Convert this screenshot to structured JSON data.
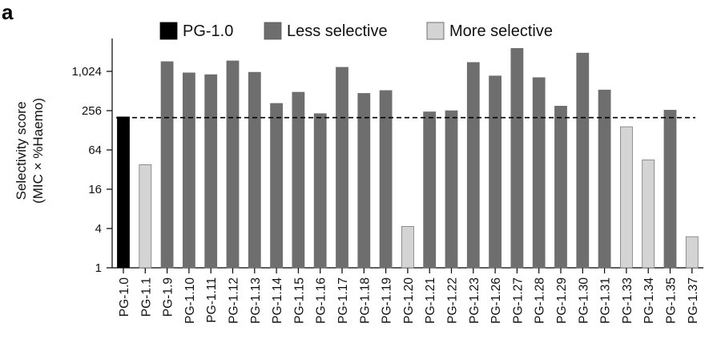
{
  "panel_label": "a",
  "chart_data": {
    "type": "bar",
    "y_scale": "log2",
    "ylabel_line1": "Selectivity score",
    "ylabel_line2": "(MIC × %Haemo)",
    "ylim": [
      1,
      2896
    ],
    "yticks": [
      1,
      4,
      16,
      64,
      256,
      1024
    ],
    "ytick_labels": [
      "1",
      "4",
      "16",
      "64",
      "256",
      "1,024"
    ],
    "reference_line": 200,
    "legend": [
      {
        "label": "PG-1.0",
        "color": "#000000",
        "group": "reference"
      },
      {
        "label": "Less selective",
        "color": "#6e6e6e",
        "group": "less"
      },
      {
        "label": "More selective",
        "color": "#d4d4d4",
        "group": "more"
      }
    ],
    "categories": [
      "PG-1.0",
      "PG-1.1",
      "PG-1.9",
      "PG-1.10",
      "PG-1.11",
      "PG-1.12",
      "PG-1.13",
      "PG-1.14",
      "PG-1.15",
      "PG-1.16",
      "PG-1.17",
      "PG-1.18",
      "PG-1.19",
      "PG-1.20",
      "PG-1.21",
      "PG-1.22",
      "PG-1.23",
      "PG-1.26",
      "PG-1.27",
      "PG-1.28",
      "PG-1.29",
      "PG-1.30",
      "PG-1.31",
      "PG-1.33",
      "PG-1.34",
      "PG-1.35",
      "PG-1.37"
    ],
    "values": [
      205,
      38,
      1440,
      970,
      910,
      1480,
      990,
      330,
      490,
      230,
      1180,
      470,
      520,
      4.3,
      245,
      255,
      1400,
      870,
      2300,
      820,
      300,
      1950,
      530,
      145,
      45,
      260,
      3.0
    ],
    "groups": [
      "reference",
      "more",
      "less",
      "less",
      "less",
      "less",
      "less",
      "less",
      "less",
      "less",
      "less",
      "less",
      "less",
      "more",
      "less",
      "less",
      "less",
      "less",
      "less",
      "less",
      "less",
      "less",
      "less",
      "more",
      "more",
      "less",
      "more"
    ]
  }
}
